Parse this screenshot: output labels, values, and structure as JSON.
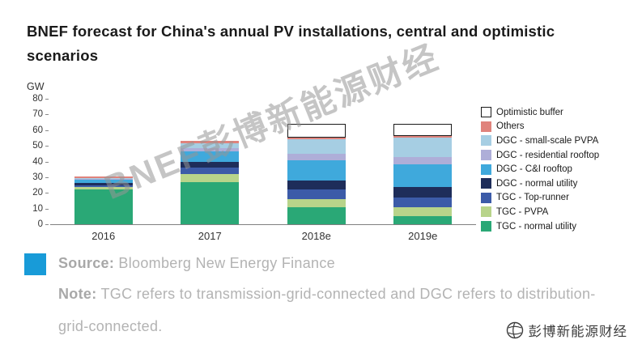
{
  "title": "BNEF forecast for China's annual PV installations, central and optimistic scenarios",
  "watermark": "BNEF彭博新能源财经",
  "footer": {
    "source_label": "Source:",
    "source_text": " Bloomberg New Energy Finance",
    "note_label": "Note:",
    "note_text": " TGC refers to transmission-grid-connected and DGC refers to distribution-grid-connected.",
    "accent_color": "#189bd8"
  },
  "logo": {
    "icon": "bnef-globe-icon",
    "text": "彭博新能源财经"
  },
  "chart_data": {
    "type": "bar",
    "stacked": true,
    "title": "BNEF forecast for China's annual PV installations, central and optimistic scenarios",
    "unit_label": "GW",
    "ylabel": "GW",
    "ylim": [
      0,
      80
    ],
    "yticks": [
      0,
      10,
      20,
      30,
      40,
      50,
      60,
      70,
      80
    ],
    "grid": false,
    "legend_position": "right",
    "categories": [
      "2016",
      "2017",
      "2018e",
      "2019e"
    ],
    "series": [
      {
        "name": "TGC - normal utility",
        "color": "#2aa876",
        "values": [
          22,
          27,
          11,
          5
        ]
      },
      {
        "name": "TGC - PVPA",
        "color": "#b8d48a",
        "values": [
          2,
          5,
          5,
          6
        ]
      },
      {
        "name": "TGC - Top-runner",
        "color": "#3c5ba8",
        "values": [
          1,
          4,
          6,
          6
        ]
      },
      {
        "name": "DGC - normal utility",
        "color": "#1e2d5a",
        "values": [
          1.5,
          3.5,
          6,
          7
        ]
      },
      {
        "name": "DGC - C&I rooftop",
        "color": "#3fa9dc",
        "values": [
          2,
          7,
          13,
          14
        ]
      },
      {
        "name": "DGC - residential rooftop",
        "color": "#aeaed8",
        "values": [
          0.5,
          2,
          4,
          5
        ]
      },
      {
        "name": "DGC - small-scale PVPA",
        "color": "#a6cee3",
        "values": [
          0.5,
          3,
          9,
          12
        ]
      },
      {
        "name": "Others",
        "color": "#e0837c",
        "values": [
          0.8,
          1.5,
          1,
          1.5
        ]
      },
      {
        "name": "Optimistic buffer",
        "color": "#ffffff",
        "outline": true,
        "values": [
          0,
          0,
          9,
          7.5
        ]
      }
    ],
    "totals_central": [
      30.3,
      53,
      55,
      56.5
    ],
    "totals_optimistic": [
      30.3,
      53,
      64,
      64
    ]
  }
}
